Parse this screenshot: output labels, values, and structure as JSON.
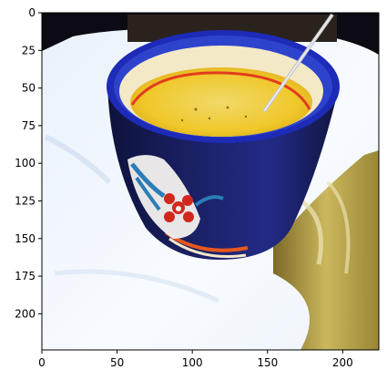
{
  "image": {
    "subject": "cup-of-soup-with-spoon",
    "x_extent": [
      0,
      224
    ],
    "y_extent": [
      0,
      224
    ]
  },
  "axes": {
    "x_ticks": [
      0,
      50,
      100,
      150,
      200
    ],
    "y_ticks": [
      0,
      25,
      50,
      75,
      100,
      125,
      150,
      175,
      200
    ],
    "x_tick_labels": [
      "0",
      "50",
      "100",
      "150",
      "200"
    ],
    "y_tick_labels": [
      "0",
      "25",
      "50",
      "75",
      "100",
      "125",
      "150",
      "175",
      "200"
    ]
  },
  "colors": {
    "cup_blue": "#1d2bb8",
    "cup_dark": "#141a50",
    "soup_yellow": "#f3d23a",
    "rim_red": "#e33c1e",
    "cloth_white": "#f4f7fb",
    "cloth_shadow": "#a89a36",
    "background_dark": "#0c0a12"
  }
}
